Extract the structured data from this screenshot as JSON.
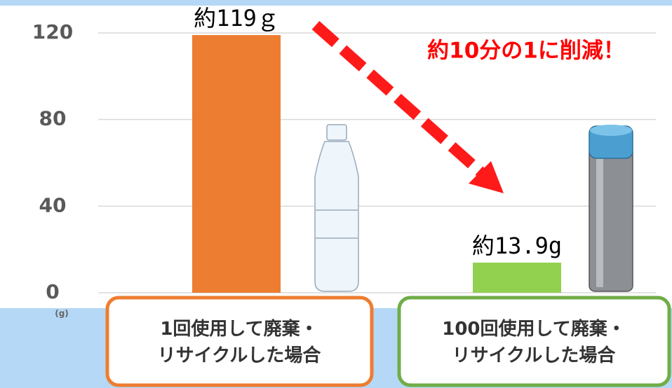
{
  "chart_data": {
    "type": "bar",
    "categories": [
      "1回使用して廃棄・\nリサイクルした場合",
      "100回使用して廃棄・\nリサイクルした場合"
    ],
    "values": [
      119,
      13.9
    ],
    "value_labels": [
      "約119ｇ",
      "約13.9g"
    ],
    "colors": [
      "#ed7d31",
      "#92d050"
    ],
    "ylim": [
      0,
      120
    ],
    "yticks": [
      0,
      40,
      80,
      120
    ],
    "grid": true,
    "y_unit": "(g)",
    "annotation": "約10分の1に削減！"
  }
}
